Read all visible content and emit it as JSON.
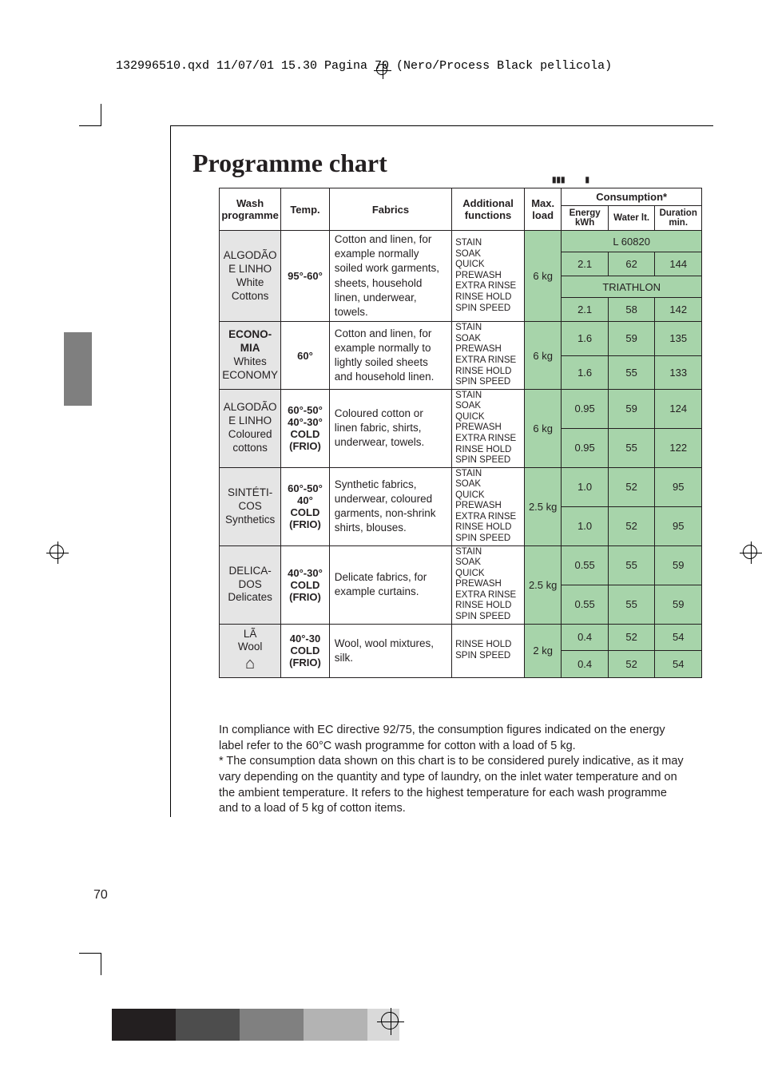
{
  "header_text": "132996510.qxd  11/07/01  15.30  Pagina  70      (Nero/Process Black pellicola)",
  "title": "Programme chart",
  "table": {
    "tiny_marks_left": "▮▮▮",
    "tiny_marks_right": "▮",
    "headers": {
      "wash": "Wash programme",
      "temp": "Temp.",
      "fabrics": "Fabrics",
      "additional": "Additional functions",
      "max_load": "Max. load",
      "consumption": "Consumption*",
      "energy": "Energy kWh",
      "water": "Water lt.",
      "duration": "Duration min."
    },
    "models": {
      "a": "L 60820",
      "b": "TRIATHLON"
    },
    "rows": [
      {
        "prog": "ALGODÃO E LINHO\nWhite Cottons",
        "temp": "95°-60°",
        "fab": "Cotton and linen, for example normally soiled work garments, sheets, household linen, underwear, towels.",
        "add": "STAIN\nSOAK\nQUICK\nPREWASH\nEXTRA RINSE\nRINSE HOLD\nSPIN SPEED",
        "load": "6 kg",
        "show_models": true,
        "c": [
          {
            "e": "2.1",
            "w": "62",
            "d": "144"
          },
          {
            "e": "2.1",
            "w": "58",
            "d": "142"
          }
        ]
      },
      {
        "prog": "ECONO-MIA",
        "prog2": "Whites ECONOMY",
        "temp": "60°",
        "fab": "Cotton and linen, for example normally to lightly soiled sheets and household linen.",
        "add": "STAIN\nSOAK\nPREWASH\nEXTRA RINSE\nRINSE HOLD\nSPIN SPEED",
        "load": "6 kg",
        "c": [
          {
            "e": "1.6",
            "w": "59",
            "d": "135"
          },
          {
            "e": "1.6",
            "w": "55",
            "d": "133"
          }
        ]
      },
      {
        "prog": "ALGODÃO E LINHO\nColoured cottons",
        "temp": "60°-50°\n40°-30°\nCOLD (FRIO)",
        "fab": "Coloured cotton or linen fabric, shirts, underwear, towels.",
        "add": "STAIN\nSOAK\nQUICK\nPREWASH\nEXTRA RINSE\nRINSE HOLD\nSPIN SPEED",
        "load": "6 kg",
        "c": [
          {
            "e": "0.95",
            "w": "59",
            "d": "124"
          },
          {
            "e": "0.95",
            "w": "55",
            "d": "122"
          }
        ]
      },
      {
        "prog": "SINTÉTI-COS\nSynthetics",
        "temp": "60°-50°\n40°\nCOLD (FRIO)",
        "fab": "Synthetic fabrics, underwear, coloured garments, non-shrink shirts, blouses.",
        "add": "STAIN\nSOAK\nQUICK\nPREWASH\nEXTRA RINSE\nRINSE HOLD\nSPIN SPEED",
        "load": "2.5 kg",
        "c": [
          {
            "e": "1.0",
            "w": "52",
            "d": "95"
          },
          {
            "e": "1.0",
            "w": "52",
            "d": "95"
          }
        ]
      },
      {
        "prog": "DELICA-DOS\nDelicates",
        "temp": "40°-30°\nCOLD (FRIO)",
        "fab": "Delicate fabrics, for example curtains.",
        "add": "STAIN\nSOAK\nQUICK\nPREWASH\nEXTRA RINSE\nRINSE HOLD\nSPIN SPEED",
        "load": "2.5 kg",
        "c": [
          {
            "e": "0.55",
            "w": "55",
            "d": "59"
          },
          {
            "e": "0.55",
            "w": "55",
            "d": "59"
          }
        ]
      },
      {
        "prog": "LÃ\nWool",
        "temp": "40°-30\nCOLD (FRIO)",
        "fab": "Wool, wool mixtures, silk.",
        "add": "RINSE HOLD\nSPIN SPEED",
        "load": "2 kg",
        "wool_icon": true,
        "c": [
          {
            "e": "0.4",
            "w": "52",
            "d": "54"
          },
          {
            "e": "0.4",
            "w": "52",
            "d": "54"
          }
        ]
      }
    ]
  },
  "bottom_text": "In compliance with EC directive 92/75, the consumption figures indicated on the energy label refer to the 60°C wash programme for cotton with a load of 5 kg.",
  "bottom_text2": "* The consumption data shown on this chart is to be considered purely indicative, as it may vary depending on the quantity and type of laundry, on the inlet water temperature and on the ambient temperature. It refers to the highest temperature for each wash programme and to a load of 5 kg of cotton items.",
  "page_num": "70",
  "color_bar": [
    "#231f20",
    "#231f20",
    "#4d4d4d",
    "#4d4d4d",
    "#808080",
    "#808080",
    "#b3b3b3",
    "#b3b3b3",
    "#d9d9d9"
  ]
}
